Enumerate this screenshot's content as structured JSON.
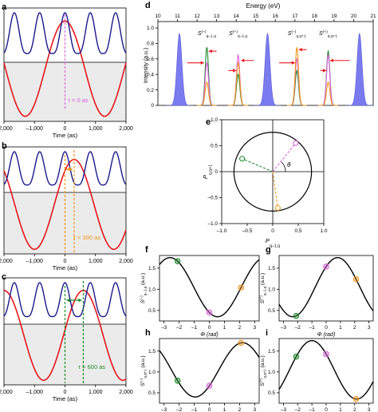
{
  "panel_labels": {
    "a": "a",
    "b": "b",
    "c": "c",
    "d": "d",
    "e": "e",
    "f": "f",
    "g": "g",
    "h": "h",
    "i": "i"
  },
  "delay_labels": {
    "a": "τ = 0 as",
    "b": "τ = 300 as",
    "c": "τ = 600 as"
  },
  "time_axis": {
    "xlabel": "Time (as)",
    "ticks": [
      {
        "v": -2000,
        "t": "–2,000"
      },
      {
        "v": -1000,
        "t": "–1,000"
      },
      {
        "v": 0,
        "t": "0"
      },
      {
        "v": 1000,
        "t": "1,000"
      },
      {
        "v": 2000,
        "t": "2,000"
      }
    ]
  },
  "spectrum": {
    "top_label": "Energy (eV)",
    "top_ticks": [
      "10",
      "11",
      "12",
      "13",
      "14",
      "15",
      "16",
      "17",
      "18",
      "19",
      "20",
      "21"
    ],
    "ylabel": "Intensity (a.u.)",
    "y_ticks": [
      "0",
      "0.2",
      "0.4",
      "0.6",
      "0.8",
      "1.0"
    ],
    "peak_labels": [
      {
        "main": "S",
        "sup": "(–)",
        "sub": "q–1,q",
        "e": 12.5
      },
      {
        "main": "S",
        "sup": "(+)",
        "sub": "q–1,q",
        "e": 14.1
      },
      {
        "main": "S",
        "sup": "(–)",
        "sub": "q,q+1",
        "e": 17.1
      },
      {
        "main": "S",
        "sup": "(+)",
        "sub": "q,q+1",
        "e": 18.7
      }
    ]
  },
  "circle_panel": {
    "xlabel_main": "P",
    "xlabel_sub": "q–1,q",
    "ylabel_main": "P",
    "ylabel_sub": "q,q+1",
    "x_ticks": [
      "–1.0",
      "–0.5",
      "0",
      "0.5",
      "1.0"
    ],
    "y_ticks": [
      "–1.0",
      "–0.5",
      "0",
      "0.5",
      "1.0"
    ],
    "theta": "θ"
  },
  "phase_panels": {
    "xlabel": "Φ (rad)",
    "x_ticks": [
      "–3",
      "–2",
      "–1",
      "0",
      "1",
      "2",
      "3"
    ],
    "f": {
      "ylabel_main": "S",
      "ylabel_sup": "(–)",
      "ylabel_sub": "q–1,q",
      "ylabel_unit": " (a.u.)",
      "y_ticks": [
        "0.5",
        "1.0",
        "1.5"
      ]
    },
    "g": {
      "ylabel_main": "S",
      "ylabel_sup": "(+)",
      "ylabel_sub": "q–1,q",
      "ylabel_unit": " (a.u.)",
      "y_ticks": [
        "0.5",
        "1.0",
        "1.5"
      ]
    },
    "h": {
      "ylabel_main": "S",
      "ylabel_sup": "(–)",
      "ylabel_sub": "q,q+1",
      "ylabel_unit": " (a.u.)",
      "y_ticks": [
        "0.5",
        "1.0",
        "1.5"
      ]
    },
    "i": {
      "ylabel_main": "S",
      "ylabel_sup": "(+)",
      "ylabel_sub": "q,q+1",
      "ylabel_unit": " (a.u.)",
      "y_ticks": [
        "0.5",
        "1.0",
        "1.5"
      ]
    }
  },
  "colors": {
    "red": "#e8161c",
    "blue": "#1a1a8c",
    "green": "#1e8c2a",
    "orange": "#f2961c",
    "pink": "#e060e0",
    "purple_fill": "#7b7bf0",
    "gray_fill": "#ebebeb"
  },
  "chart_data": [
    {
      "id": "a",
      "type": "line",
      "xlim": [
        -2000,
        2000
      ],
      "delay_as": 0,
      "series": [
        {
          "curve": "red",
          "desc": "slow field, period ~2500 as"
        },
        {
          "curve": "blue",
          "desc": "fast oscillation, period ~830 as"
        }
      ]
    },
    {
      "id": "b",
      "type": "line",
      "xlim": [
        -2000,
        2000
      ],
      "delay_as": 300
    },
    {
      "id": "c",
      "type": "line",
      "xlim": [
        -2000,
        2000
      ],
      "delay_as": 600
    },
    {
      "id": "d",
      "type": "area",
      "xlim_eV": [
        10,
        21
      ],
      "ylim": [
        0,
        1.0
      ],
      "sidebands_eV": [
        12.5,
        14.1,
        17.1,
        18.7
      ],
      "harmonics_eV": [
        11.1,
        15.6,
        20.3
      ],
      "series": [
        {
          "curve": "green",
          "heights": [
            0.75,
            0.4,
            0.45,
            0.7
          ]
        },
        {
          "curve": "pink",
          "heights": [
            0.55,
            0.65,
            0.6,
            0.65
          ]
        },
        {
          "curve": "orange",
          "heights": [
            0.3,
            0.55,
            0.75,
            0.3
          ]
        }
      ]
    },
    {
      "id": "e",
      "type": "scatter",
      "xlim": [
        -1.0,
        1.0
      ],
      "ylim": [
        -1.0,
        1.0
      ],
      "points": [
        {
          "curve": "green",
          "x": -0.6,
          "y": 0.25
        },
        {
          "curve": "pink",
          "x": 0.45,
          "y": 0.55
        },
        {
          "curve": "orange",
          "x": 0.1,
          "y": -0.7
        }
      ]
    },
    {
      "id": "f",
      "type": "line",
      "xlim": [
        -3,
        3
      ],
      "ylim": [
        0.25,
        1.8
      ],
      "amp": 0.7,
      "offset": 1.05,
      "phase": -2.6,
      "markers": [
        {
          "curve": "green",
          "x": -2.1
        },
        {
          "curve": "pink",
          "x": 0
        },
        {
          "curve": "orange",
          "x": 2.1
        }
      ]
    },
    {
      "id": "g",
      "type": "line",
      "xlim": [
        -3,
        3
      ],
      "ylim": [
        0.25,
        1.8
      ],
      "amp": 0.7,
      "offset": 1.05,
      "phase": 0.8,
      "markers": [
        {
          "curve": "green",
          "x": -2.1
        },
        {
          "curve": "pink",
          "x": 0
        },
        {
          "curve": "orange",
          "x": 2.1
        }
      ]
    },
    {
      "id": "h",
      "type": "line",
      "xlim": [
        -3,
        3
      ],
      "ylim": [
        0.25,
        1.8
      ],
      "amp": 0.65,
      "offset": 1.05,
      "phase": 2.2,
      "markers": [
        {
          "curve": "green",
          "x": -2.1
        },
        {
          "curve": "pink",
          "x": 0
        },
        {
          "curve": "orange",
          "x": 2.1
        }
      ]
    },
    {
      "id": "i",
      "type": "line",
      "xlim": [
        -3,
        3
      ],
      "ylim": [
        0.25,
        1.8
      ],
      "amp": 0.7,
      "offset": 1.05,
      "phase": -1.0,
      "markers": [
        {
          "curve": "green",
          "x": -2.1
        },
        {
          "curve": "pink",
          "x": 0
        },
        {
          "curve": "orange",
          "x": 2.1
        }
      ]
    }
  ]
}
